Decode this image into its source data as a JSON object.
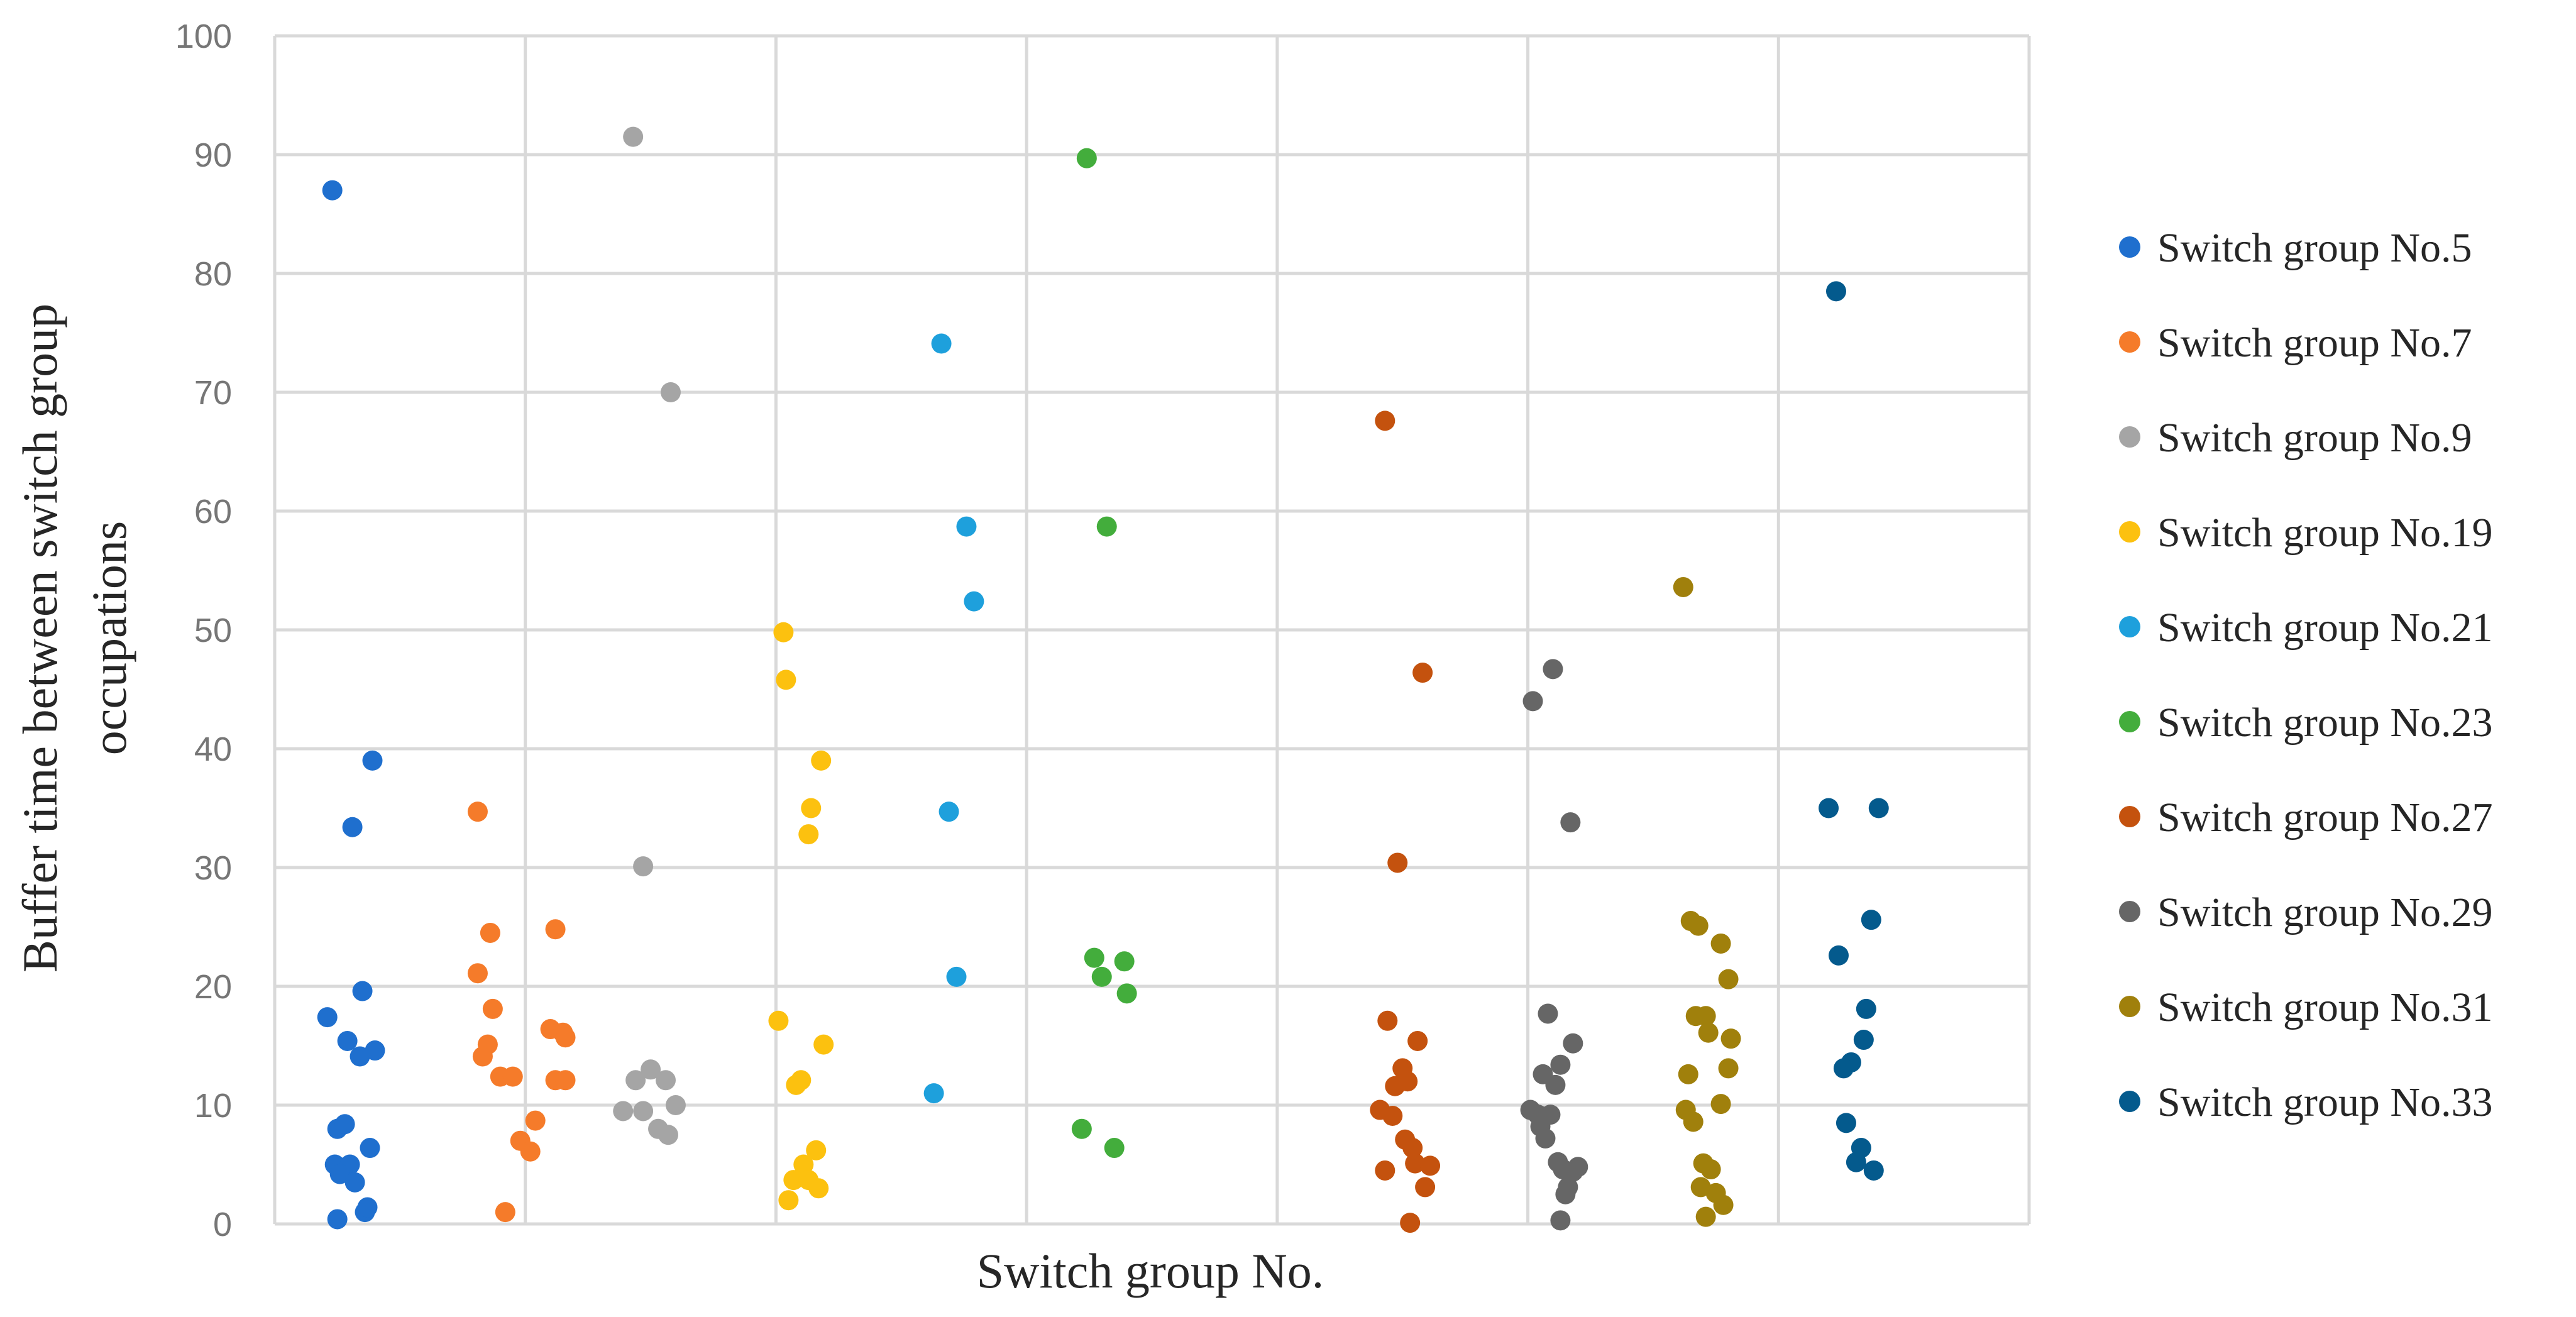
{
  "chart_data": {
    "type": "scatter",
    "title": "",
    "xlabel": "Switch group No.",
    "ylabel_lines": [
      "Buffer time between switch group",
      "occupations"
    ],
    "ylim": [
      0,
      100
    ],
    "yticks": [
      "0",
      "10",
      "20",
      "30",
      "40",
      "50",
      "60",
      "70",
      "80",
      "90",
      "100"
    ],
    "grid": true,
    "legend_position": "right",
    "series": [
      {
        "name": "Switch group No.5",
        "color": "#1f6fce",
        "points": [
          [
            0.23,
            87.0
          ],
          [
            0.39,
            39.0
          ],
          [
            0.31,
            33.4
          ],
          [
            0.35,
            19.6
          ],
          [
            0.21,
            17.4
          ],
          [
            0.29,
            15.4
          ],
          [
            0.4,
            14.6
          ],
          [
            0.34,
            14.1
          ],
          [
            0.25,
            8.0
          ],
          [
            0.28,
            8.4
          ],
          [
            0.38,
            6.4
          ],
          [
            0.24,
            5.0
          ],
          [
            0.3,
            5.0
          ],
          [
            0.26,
            4.2
          ],
          [
            0.32,
            3.5
          ],
          [
            0.36,
            1.0
          ],
          [
            0.37,
            1.4
          ],
          [
            0.25,
            0.4
          ]
        ]
      },
      {
        "name": "Switch group No.7",
        "color": "#f57b2a",
        "points": [
          [
            0.81,
            34.7
          ],
          [
            1.12,
            24.8
          ],
          [
            0.86,
            24.5
          ],
          [
            0.81,
            21.1
          ],
          [
            0.87,
            18.1
          ],
          [
            1.1,
            16.4
          ],
          [
            1.15,
            16.1
          ],
          [
            0.85,
            15.1
          ],
          [
            1.16,
            15.7
          ],
          [
            0.83,
            14.1
          ],
          [
            0.9,
            12.4
          ],
          [
            0.95,
            12.4
          ],
          [
            1.12,
            12.1
          ],
          [
            1.16,
            12.1
          ],
          [
            1.04,
            8.7
          ],
          [
            0.98,
            7.0
          ],
          [
            1.02,
            6.1
          ],
          [
            0.92,
            1.0
          ]
        ]
      },
      {
        "name": "Switch group No.9",
        "color": "#a5a5a5",
        "points": [
          [
            1.43,
            91.5
          ],
          [
            1.58,
            70.0
          ],
          [
            1.47,
            30.1
          ],
          [
            1.5,
            13.0
          ],
          [
            1.44,
            12.1
          ],
          [
            1.56,
            12.1
          ],
          [
            1.6,
            10.0
          ],
          [
            1.39,
            9.5
          ],
          [
            1.47,
            9.5
          ],
          [
            1.53,
            8.0
          ],
          [
            1.57,
            7.5
          ]
        ]
      },
      {
        "name": "Switch group No.19",
        "color": "#fcc10f",
        "points": [
          [
            2.03,
            49.8
          ],
          [
            2.04,
            45.8
          ],
          [
            2.18,
            39.0
          ],
          [
            2.14,
            35.0
          ],
          [
            2.13,
            32.8
          ],
          [
            2.01,
            17.1
          ],
          [
            2.19,
            15.1
          ],
          [
            2.1,
            12.1
          ],
          [
            2.08,
            11.7
          ],
          [
            2.16,
            6.2
          ],
          [
            2.11,
            5.0
          ],
          [
            2.07,
            3.7
          ],
          [
            2.13,
            3.7
          ],
          [
            2.17,
            3.0
          ],
          [
            2.05,
            2.0
          ]
        ]
      },
      {
        "name": "Switch group No.21",
        "color": "#1ea0dc",
        "points": [
          [
            2.66,
            74.1
          ],
          [
            2.76,
            58.7
          ],
          [
            2.79,
            52.4
          ],
          [
            2.69,
            34.7
          ],
          [
            2.72,
            20.8
          ],
          [
            2.63,
            11.0
          ]
        ]
      },
      {
        "name": "Switch group No.23",
        "color": "#43ad3c",
        "points": [
          [
            3.24,
            89.7
          ],
          [
            3.32,
            58.7
          ],
          [
            3.27,
            22.4
          ],
          [
            3.39,
            22.1
          ],
          [
            3.3,
            20.8
          ],
          [
            3.4,
            19.4
          ],
          [
            3.22,
            8.0
          ],
          [
            3.35,
            6.4
          ]
        ]
      },
      {
        "name": "Switch group No.27",
        "color": "#c4520e",
        "points": [
          [
            4.43,
            67.6
          ],
          [
            4.58,
            46.4
          ],
          [
            4.48,
            30.4
          ],
          [
            4.44,
            17.1
          ],
          [
            4.56,
            15.4
          ],
          [
            4.5,
            13.1
          ],
          [
            4.52,
            12.0
          ],
          [
            4.47,
            11.6
          ],
          [
            4.41,
            9.6
          ],
          [
            4.46,
            9.1
          ],
          [
            4.51,
            7.1
          ],
          [
            4.54,
            6.4
          ],
          [
            4.55,
            5.1
          ],
          [
            4.61,
            4.9
          ],
          [
            4.43,
            4.5
          ],
          [
            4.59,
            3.1
          ],
          [
            4.53,
            0.1
          ]
        ]
      },
      {
        "name": "Switch group No.29",
        "color": "#666666",
        "points": [
          [
            5.1,
            46.7
          ],
          [
            5.02,
            44.0
          ],
          [
            5.17,
            33.8
          ],
          [
            5.08,
            17.7
          ],
          [
            5.18,
            15.2
          ],
          [
            5.13,
            13.4
          ],
          [
            5.06,
            12.6
          ],
          [
            5.11,
            11.7
          ],
          [
            5.01,
            9.6
          ],
          [
            5.04,
            9.2
          ],
          [
            5.09,
            9.2
          ],
          [
            5.05,
            8.2
          ],
          [
            5.07,
            7.2
          ],
          [
            5.12,
            5.2
          ],
          [
            5.2,
            4.8
          ],
          [
            5.14,
            4.6
          ],
          [
            5.18,
            4.4
          ],
          [
            5.16,
            3.1
          ],
          [
            5.15,
            2.5
          ],
          [
            5.13,
            0.3
          ]
        ]
      },
      {
        "name": "Switch group No.31",
        "color": "#a0800c",
        "points": [
          [
            5.62,
            53.6
          ],
          [
            5.65,
            25.5
          ],
          [
            5.68,
            25.1
          ],
          [
            5.77,
            23.6
          ],
          [
            5.8,
            20.6
          ],
          [
            5.67,
            17.5
          ],
          [
            5.71,
            17.5
          ],
          [
            5.81,
            15.6
          ],
          [
            5.72,
            16.1
          ],
          [
            5.64,
            12.6
          ],
          [
            5.8,
            13.1
          ],
          [
            5.77,
            10.1
          ],
          [
            5.63,
            9.6
          ],
          [
            5.66,
            8.6
          ],
          [
            5.7,
            5.1
          ],
          [
            5.73,
            4.6
          ],
          [
            5.69,
            3.1
          ],
          [
            5.75,
            2.6
          ],
          [
            5.78,
            1.6
          ],
          [
            5.71,
            0.6
          ]
        ]
      },
      {
        "name": "Switch group No.33",
        "color": "#045a8d",
        "points": [
          [
            6.23,
            78.5
          ],
          [
            6.2,
            35.0
          ],
          [
            6.4,
            35.0
          ],
          [
            6.37,
            25.6
          ],
          [
            6.24,
            22.6
          ],
          [
            6.35,
            18.1
          ],
          [
            6.34,
            15.5
          ],
          [
            6.29,
            13.6
          ],
          [
            6.26,
            13.1
          ],
          [
            6.27,
            8.5
          ],
          [
            6.33,
            6.4
          ],
          [
            6.31,
            5.2
          ],
          [
            6.38,
            4.5
          ]
        ]
      }
    ]
  }
}
